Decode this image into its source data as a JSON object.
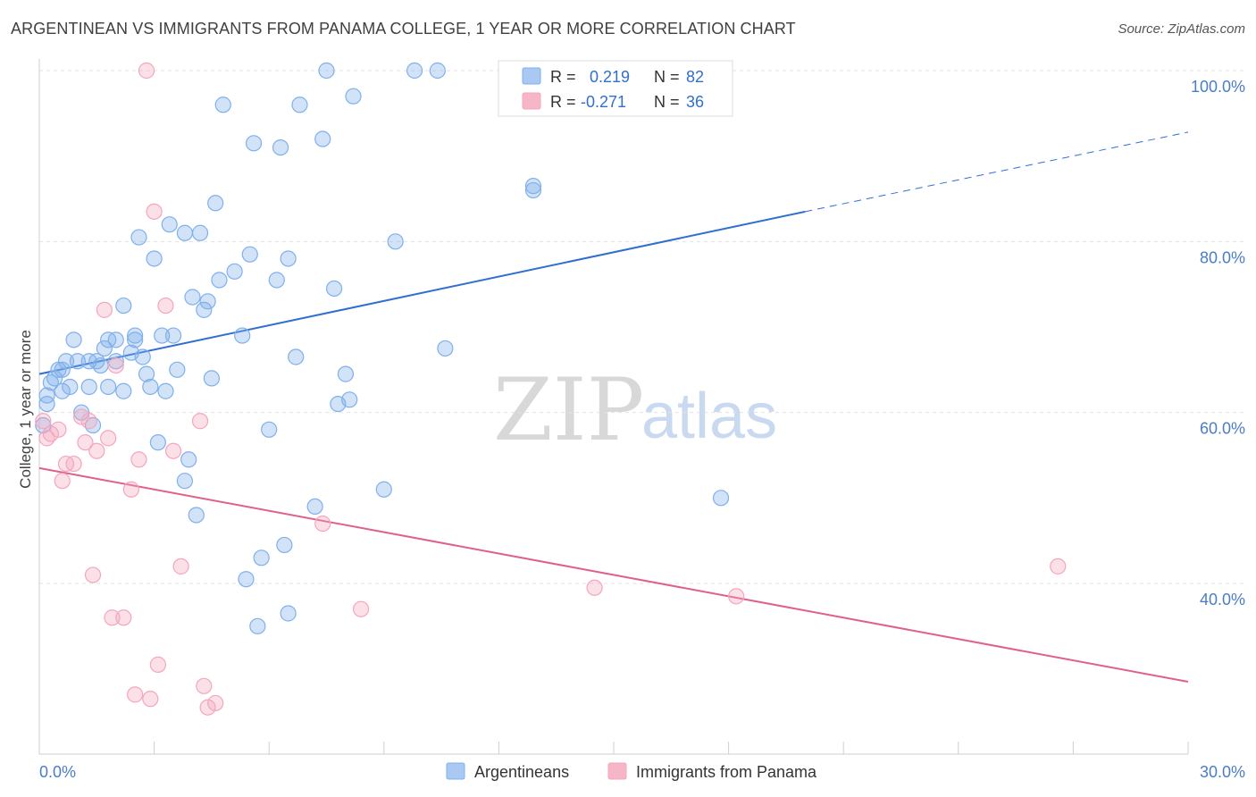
{
  "title": "ARGENTINEAN VS IMMIGRANTS FROM PANAMA COLLEGE, 1 YEAR OR MORE CORRELATION CHART",
  "source": "Source: ZipAtlas.com",
  "watermark": {
    "zip": "ZIP",
    "atlas": "atlas"
  },
  "legend_stats": [
    {
      "r_label": "R =",
      "r_value": "0.219",
      "n_label": "N =",
      "n_value": "82",
      "color": "#a9c9f3"
    },
    {
      "r_label": "R =",
      "r_value": "-0.271",
      "n_label": "N =",
      "n_value": "36",
      "color": "#f7b6c8"
    }
  ],
  "chart_data": {
    "type": "scatter",
    "title": "ARGENTINEAN VS IMMIGRANTS FROM PANAMA COLLEGE, 1 YEAR OR MORE CORRELATION CHART",
    "xlabel": "",
    "ylabel": "College, 1 year or more",
    "xlim": [
      0,
      30
    ],
    "ylim": [
      20,
      102
    ],
    "x_tick_labels": [
      "0.0%",
      "30.0%"
    ],
    "y_tick_values": [
      40,
      60,
      80,
      100
    ],
    "y_tick_labels": [
      "40.0%",
      "60.0%",
      "80.0%",
      "100.0%"
    ],
    "grid": "horizontal dashed",
    "legend_position": "bottom-center",
    "series": [
      {
        "name": "Argentineans",
        "color": "#7fb0ec",
        "line_color": "#2f6fd0",
        "trend": {
          "x0": 0,
          "y0": 64.5,
          "x1": 20,
          "y1": 83.5,
          "dashed_to_x": 30,
          "dashed_to_y": 92.8
        },
        "points": [
          [
            0.1,
            58.5
          ],
          [
            0.2,
            61
          ],
          [
            0.2,
            62
          ],
          [
            0.3,
            63.5
          ],
          [
            0.4,
            64
          ],
          [
            0.5,
            65
          ],
          [
            0.6,
            65
          ],
          [
            0.6,
            62.5
          ],
          [
            0.7,
            66
          ],
          [
            0.8,
            63
          ],
          [
            0.9,
            68.5
          ],
          [
            1.0,
            66
          ],
          [
            1.1,
            60
          ],
          [
            1.3,
            63
          ],
          [
            1.3,
            66
          ],
          [
            1.4,
            58.5
          ],
          [
            1.5,
            66
          ],
          [
            1.6,
            65.5
          ],
          [
            1.7,
            67.5
          ],
          [
            1.8,
            63
          ],
          [
            1.8,
            68.5
          ],
          [
            2.0,
            68.5
          ],
          [
            2.0,
            66
          ],
          [
            2.2,
            62.5
          ],
          [
            2.2,
            72.5
          ],
          [
            2.4,
            67
          ],
          [
            2.5,
            69
          ],
          [
            2.5,
            68.5
          ],
          [
            2.6,
            80.5
          ],
          [
            2.7,
            66.5
          ],
          [
            2.8,
            64.5
          ],
          [
            2.9,
            63
          ],
          [
            3.0,
            78
          ],
          [
            3.1,
            56.5
          ],
          [
            3.2,
            69
          ],
          [
            3.3,
            62.5
          ],
          [
            3.4,
            82
          ],
          [
            3.5,
            69
          ],
          [
            3.6,
            65
          ],
          [
            3.8,
            81
          ],
          [
            3.8,
            52
          ],
          [
            3.9,
            54.5
          ],
          [
            4.0,
            73.5
          ],
          [
            4.1,
            48
          ],
          [
            4.2,
            81
          ],
          [
            4.3,
            72
          ],
          [
            4.4,
            73
          ],
          [
            4.5,
            64
          ],
          [
            4.6,
            84.5
          ],
          [
            4.7,
            75.5
          ],
          [
            4.8,
            96
          ],
          [
            5.1,
            76.5
          ],
          [
            5.3,
            69
          ],
          [
            5.5,
            78.5
          ],
          [
            5.6,
            91.5
          ],
          [
            5.7,
            35
          ],
          [
            5.8,
            43
          ],
          [
            5.4,
            40.5
          ],
          [
            6.0,
            58
          ],
          [
            6.2,
            75.5
          ],
          [
            6.3,
            91
          ],
          [
            6.4,
            44.5
          ],
          [
            6.5,
            78
          ],
          [
            6.5,
            36.5
          ],
          [
            6.7,
            66.5
          ],
          [
            6.8,
            96
          ],
          [
            7.2,
            49
          ],
          [
            7.4,
            92
          ],
          [
            7.5,
            100
          ],
          [
            7.7,
            74.5
          ],
          [
            7.8,
            61
          ],
          [
            8.0,
            64.5
          ],
          [
            8.1,
            61.5
          ],
          [
            8.2,
            97
          ],
          [
            9.0,
            51
          ],
          [
            9.3,
            80
          ],
          [
            9.8,
            100
          ],
          [
            10.4,
            100
          ],
          [
            10.6,
            67.5
          ],
          [
            12.9,
            86.5
          ],
          [
            12.9,
            86
          ],
          [
            17.8,
            50
          ]
        ]
      },
      {
        "name": "Immigrants from Panama",
        "color": "#f4a6bd",
        "line_color": "#e0608a",
        "trend": {
          "x0": 0,
          "y0": 53.5,
          "x1": 30,
          "y1": 28.5
        },
        "points": [
          [
            0.1,
            59
          ],
          [
            0.2,
            57
          ],
          [
            0.3,
            57.5
          ],
          [
            0.5,
            58
          ],
          [
            0.6,
            52
          ],
          [
            0.7,
            54
          ],
          [
            0.9,
            54
          ],
          [
            1.1,
            59.5
          ],
          [
            1.2,
            56.5
          ],
          [
            1.3,
            59
          ],
          [
            1.4,
            41
          ],
          [
            1.5,
            55.5
          ],
          [
            1.7,
            72
          ],
          [
            1.8,
            57
          ],
          [
            1.9,
            36
          ],
          [
            2.0,
            65.5
          ],
          [
            2.2,
            36
          ],
          [
            2.4,
            51
          ],
          [
            2.5,
            27
          ],
          [
            2.6,
            54.5
          ],
          [
            2.8,
            100
          ],
          [
            2.9,
            26.5
          ],
          [
            3.0,
            83.5
          ],
          [
            3.1,
            30.5
          ],
          [
            3.3,
            72.5
          ],
          [
            3.5,
            55.5
          ],
          [
            3.7,
            42
          ],
          [
            4.2,
            59
          ],
          [
            4.3,
            28
          ],
          [
            4.4,
            25.5
          ],
          [
            4.6,
            26
          ],
          [
            7.4,
            47
          ],
          [
            8.4,
            37
          ],
          [
            14.5,
            39.5
          ],
          [
            18.2,
            38.5
          ],
          [
            26.6,
            42
          ]
        ]
      }
    ]
  },
  "bottom_legend": [
    {
      "label": "Argentineans",
      "color": "#a9c9f3"
    },
    {
      "label": "Immigrants from Panama",
      "color": "#f7b6c8"
    }
  ]
}
